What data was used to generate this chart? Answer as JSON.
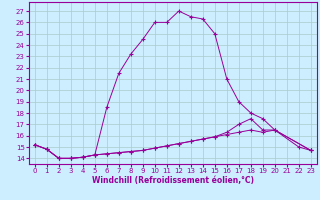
{
  "xlabel": "Windchill (Refroidissement éolien,°C)",
  "bg_color": "#cceeff",
  "line_color": "#990099",
  "grid_color": "#aacccc",
  "x_ticks": [
    0,
    1,
    2,
    3,
    4,
    5,
    6,
    7,
    8,
    9,
    10,
    11,
    12,
    13,
    14,
    15,
    16,
    17,
    18,
    19,
    20,
    21,
    22,
    23
  ],
  "y_ticks": [
    14,
    15,
    16,
    17,
    18,
    19,
    20,
    21,
    22,
    23,
    24,
    25,
    26,
    27
  ],
  "ylim": [
    13.5,
    27.8
  ],
  "xlim": [
    -0.5,
    23.5
  ],
  "line1_x": [
    0,
    1,
    2,
    3,
    4,
    5,
    6,
    7,
    8,
    9,
    10,
    11,
    12,
    13,
    14,
    15,
    16,
    17,
    18,
    19,
    20,
    22,
    23
  ],
  "line1_y": [
    15.2,
    14.8,
    14.0,
    14.0,
    14.1,
    14.3,
    18.5,
    21.5,
    23.2,
    24.5,
    26.0,
    26.0,
    27.0,
    26.5,
    26.3,
    25.0,
    21.0,
    19.0,
    18.0,
    17.5,
    16.5,
    15.0,
    14.7
  ],
  "line2_x": [
    0,
    1,
    2,
    3,
    4,
    5,
    6,
    7,
    8,
    9,
    10,
    11,
    12,
    13,
    14,
    15,
    16,
    17,
    18,
    19,
    20,
    23
  ],
  "line2_y": [
    15.2,
    14.8,
    14.0,
    14.0,
    14.1,
    14.3,
    14.4,
    14.5,
    14.6,
    14.7,
    14.9,
    15.1,
    15.3,
    15.5,
    15.7,
    15.9,
    16.3,
    17.0,
    17.5,
    16.5,
    16.5,
    14.7
  ],
  "line3_x": [
    0,
    1,
    2,
    3,
    4,
    5,
    6,
    7,
    8,
    9,
    10,
    11,
    12,
    13,
    14,
    15,
    16,
    17,
    18,
    19,
    20,
    23
  ],
  "line3_y": [
    15.2,
    14.8,
    14.0,
    14.0,
    14.1,
    14.3,
    14.4,
    14.5,
    14.6,
    14.7,
    14.9,
    15.1,
    15.3,
    15.5,
    15.7,
    15.9,
    16.1,
    16.3,
    16.5,
    16.3,
    16.5,
    14.7
  ],
  "tick_fontsize": 5.0,
  "xlabel_fontsize": 5.5,
  "xlabel_fontweight": "bold"
}
